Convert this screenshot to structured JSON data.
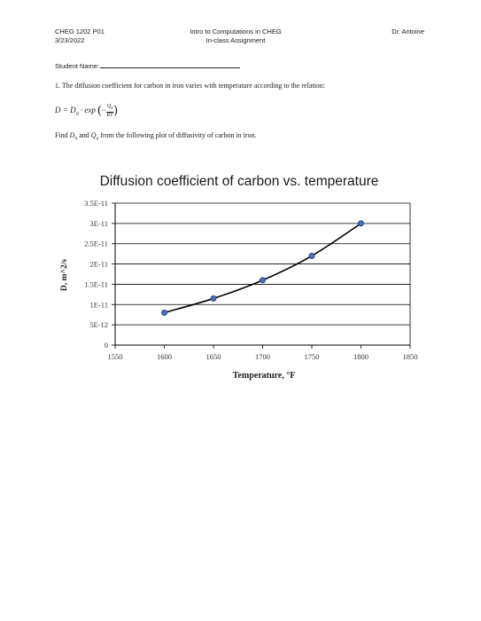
{
  "header": {
    "course": "CHEG 1202 P01",
    "date": "3/23/2022",
    "title_line1": "Intro to Computations in CHEG",
    "title_line2": "In-class Assignment",
    "instructor": "Dr. Antoine"
  },
  "student": {
    "label": "Student Name:"
  },
  "question": {
    "text": "1. The diffusion coefficient for carbon in iron varies with temperature according to the relation:",
    "eq_lhs": "D = D",
    "eq_lhs_sub": "0",
    "eq_mid": " · exp",
    "eq_num": "Q",
    "eq_num_sub": "d",
    "eq_den": "RT",
    "find_prefix": "Find ",
    "find_d0": "D",
    "find_d0_sub": "0",
    "find_and": " and ",
    "find_qd": "Q",
    "find_qd_sub": "d",
    "find_suffix": " from the following plot of diffusivity of carbon in iron."
  },
  "chart_data": {
    "type": "line",
    "title": "Diffusion coefficient of carbon vs. temperature",
    "xlabel": "Temperature, °F",
    "ylabel": "D, m^2/s",
    "xlim": [
      1550,
      1850
    ],
    "ylim": [
      0,
      3.5e-11
    ],
    "xticks": [
      "1550",
      "1600",
      "1650",
      "1700",
      "1750",
      "1800",
      "1850"
    ],
    "yticks": [
      "0",
      "5E-12",
      "1E-11",
      "1.5E-11",
      "2E-11",
      "2.5E-11",
      "3E-11",
      "3.5E-11"
    ],
    "grid": true,
    "legend": "none",
    "series": [
      {
        "x": [
          1600,
          1650,
          1700,
          1750,
          1800
        ],
        "y": [
          8e-12,
          1.15e-11,
          1.6e-11,
          2.2e-11,
          3e-11
        ]
      }
    ],
    "colors": {
      "marker_fill": "#4472c4",
      "marker_edge": "#1f3864",
      "line": "#000000",
      "grid": "#000000"
    }
  }
}
